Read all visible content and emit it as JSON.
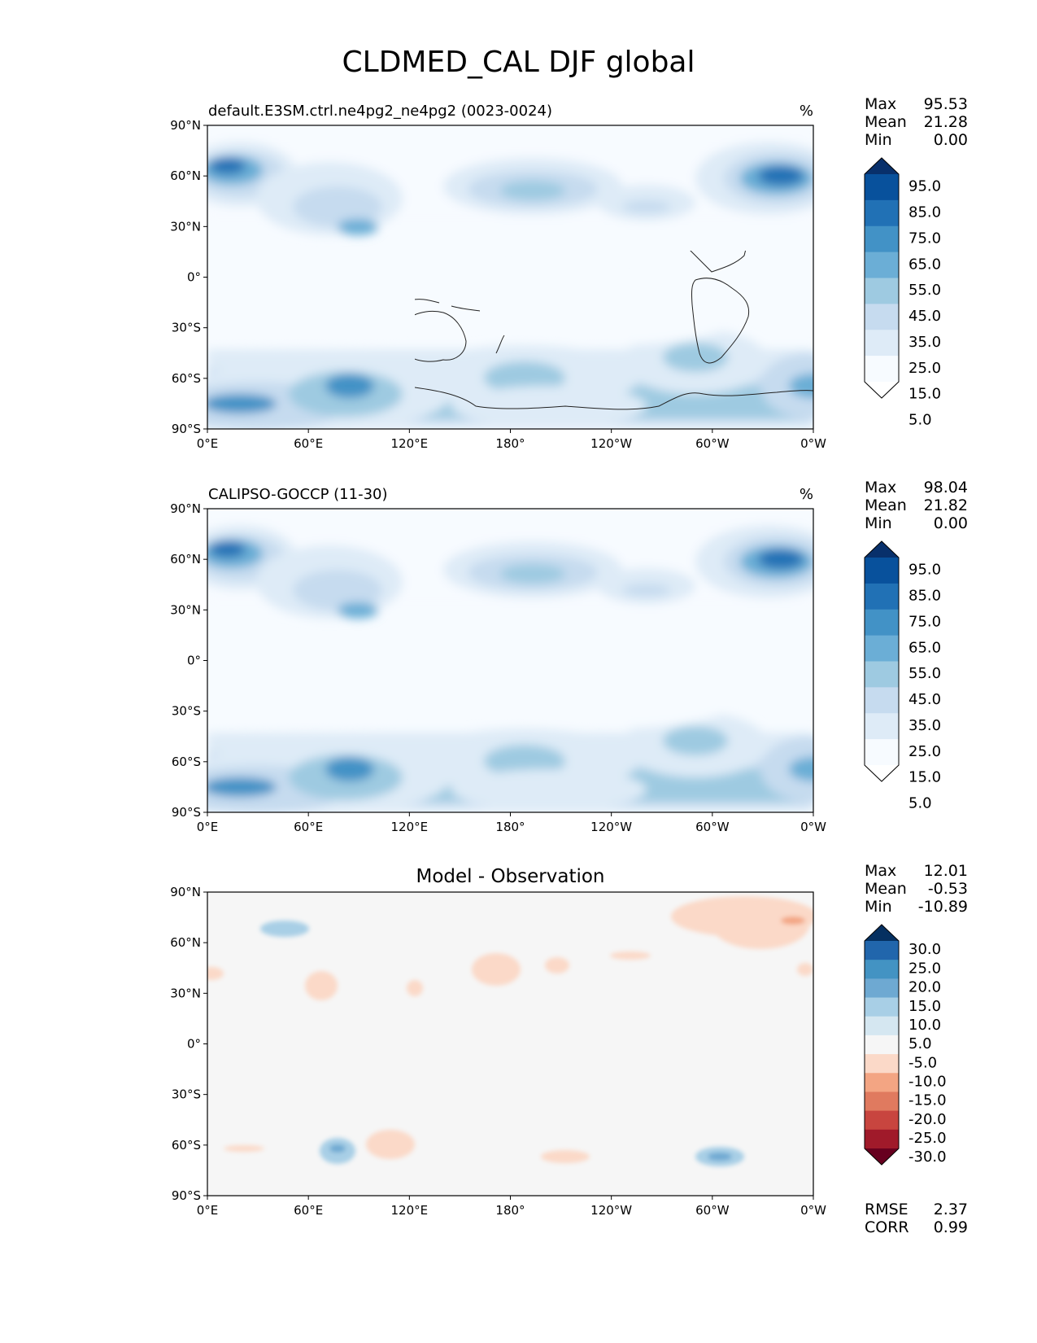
{
  "title": "CLDMED_CAL DJF global",
  "lon_ticks": [
    "0°E",
    "60°E",
    "120°E",
    "180°",
    "120°W",
    "60°W",
    "0°W"
  ],
  "lat_ticks": [
    "90°N",
    "60°N",
    "30°N",
    "0°",
    "30°S",
    "60°S",
    "90°S"
  ],
  "panels": [
    {
      "id": "model",
      "left_title": "default.E3SM.ctrl.ne4pg2_ne4pg2 (0023-0024)",
      "center_title": "",
      "right_title": "%",
      "stats": [
        {
          "label": "Max",
          "value": "95.53"
        },
        {
          "label": "Mean",
          "value": "21.28"
        },
        {
          "label": "Min",
          "value": "0.00"
        }
      ],
      "colorbar_labels": [
        "95.0",
        "85.0",
        "75.0",
        "65.0",
        "55.0",
        "45.0",
        "35.0",
        "25.0",
        "15.0",
        "5.0"
      ],
      "colorbar_colors": [
        "#08306b",
        "#08519c",
        "#2171b5",
        "#4292c6",
        "#6baed6",
        "#9ecae1",
        "#c6dbef",
        "#deebf7",
        "#f7fbff",
        "#ffffff"
      ],
      "metrics": []
    },
    {
      "id": "obs",
      "left_title": "CALIPSO-GOCCP (11-30)",
      "center_title": "",
      "right_title": "%",
      "stats": [
        {
          "label": "Max",
          "value": "98.04"
        },
        {
          "label": "Mean",
          "value": "21.82"
        },
        {
          "label": "Min",
          "value": "0.00"
        }
      ],
      "colorbar_labels": [
        "95.0",
        "85.0",
        "75.0",
        "65.0",
        "55.0",
        "45.0",
        "35.0",
        "25.0",
        "15.0",
        "5.0"
      ],
      "colorbar_colors": [
        "#08306b",
        "#08519c",
        "#2171b5",
        "#4292c6",
        "#6baed6",
        "#9ecae1",
        "#c6dbef",
        "#deebf7",
        "#f7fbff",
        "#ffffff"
      ],
      "metrics": []
    },
    {
      "id": "diff",
      "left_title": "",
      "center_title": "Model - Observation",
      "right_title": "",
      "stats": [
        {
          "label": "Max",
          "value": "12.01"
        },
        {
          "label": "Mean",
          "value": "-0.53"
        },
        {
          "label": "Min",
          "value": "-10.89"
        }
      ],
      "colorbar_labels": [
        "30.0",
        "25.0",
        "20.0",
        "15.0",
        "10.0",
        "5.0",
        "-5.0",
        "-10.0",
        "-15.0",
        "-20.0",
        "-25.0",
        "-30.0"
      ],
      "colorbar_colors": [
        "#053061",
        "#2166ac",
        "#4393c3",
        "#6ea9d2",
        "#a8cfe6",
        "#d5e7f1",
        "#f6f6f6",
        "#fbd9c8",
        "#f3a583",
        "#e07a5f",
        "#c8453f",
        "#a01a2a",
        "#67001f"
      ],
      "metrics": [
        {
          "label": "RMSE",
          "value": "2.37"
        },
        {
          "label": "CORR",
          "value": "0.99"
        }
      ]
    }
  ],
  "map_palette": {
    "blue_bg": "#f7fbff",
    "diff_bg": "#f6f6f6",
    "coast": "#222222"
  }
}
